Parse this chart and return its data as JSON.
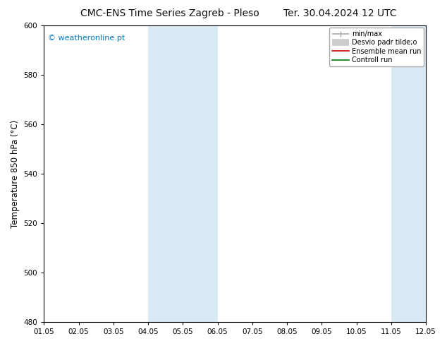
{
  "title_left": "CMC-ENS Time Series Zagreb - Pleso",
  "title_right": "Ter. 30.04.2024 12 UTC",
  "ylabel": "Temperature 850 hPa (°C)",
  "ylim": [
    480,
    600
  ],
  "yticks": [
    480,
    500,
    520,
    540,
    560,
    580,
    600
  ],
  "xtick_labels": [
    "01.05",
    "02.05",
    "03.05",
    "04.05",
    "05.05",
    "06.05",
    "07.05",
    "08.05",
    "09.05",
    "10.05",
    "11.05",
    "12.05"
  ],
  "watermark": "© weatheronline.pt",
  "watermark_color": "#0077bb",
  "background_color": "#ffffff",
  "plot_bg_color": "#ffffff",
  "shade_bands": [
    {
      "xstart": 3,
      "xend": 5
    },
    {
      "xstart": 10,
      "xend": 11
    }
  ],
  "shade_color": "#daeaf5",
  "legend_items": [
    {
      "label": "min/max",
      "color": "#aaaaaa",
      "lw": 1.2,
      "style": "minmax"
    },
    {
      "label": "Desvio padr tilde;o",
      "color": "#cccccc",
      "lw": 7,
      "style": "band"
    },
    {
      "label": "Ensemble mean run",
      "color": "#cc0000",
      "lw": 1.2,
      "style": "line"
    },
    {
      "label": "Controll run",
      "color": "#007700",
      "lw": 1.2,
      "style": "line"
    }
  ],
  "title_fontsize": 10,
  "tick_fontsize": 7.5,
  "ylabel_fontsize": 8.5,
  "watermark_fontsize": 8,
  "legend_fontsize": 7
}
